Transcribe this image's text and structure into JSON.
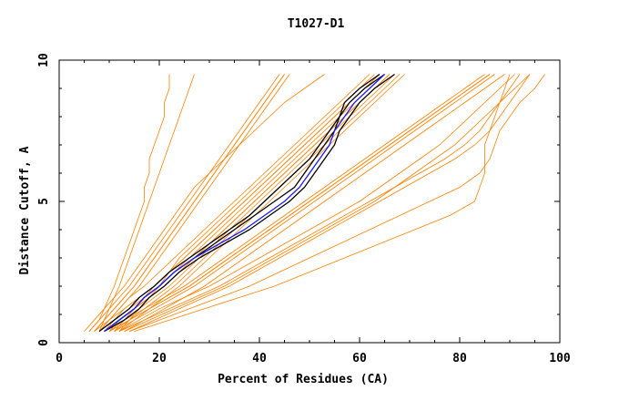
{
  "chart_data": {
    "type": "line",
    "title": "T1027-D1",
    "xlabel": "Percent of Residues (CA)",
    "ylabel": "Distance Cutoff, A",
    "xlim": [
      0,
      100
    ],
    "ylim": [
      0,
      10
    ],
    "x_ticks": [
      0,
      20,
      40,
      60,
      80,
      100
    ],
    "y_ticks": [
      0,
      5,
      10
    ],
    "x_tick_labels": [
      "0",
      "20",
      "40",
      "60",
      "80",
      "100"
    ],
    "y_tick_labels": [
      "0",
      "5",
      "10"
    ],
    "grid": false,
    "legend": "none",
    "colors": {
      "background_models": "#ff8000",
      "highlight_black": "#000000",
      "highlight_blue": "#1a1aff",
      "axis": "#000000",
      "text": "#000000"
    },
    "y_levels": [
      0.4,
      0.8,
      1.2,
      1.6,
      2.0,
      2.5,
      3.0,
      3.5,
      4.0,
      4.5,
      5.0,
      5.5,
      6.0,
      6.5,
      7.0,
      7.5,
      8.0,
      8.5,
      9.0,
      9.5
    ],
    "background_series": [
      {
        "x": [
          6,
          8,
          9,
          10,
          11,
          12,
          13,
          14,
          15,
          16,
          17,
          17,
          18,
          18,
          19,
          20,
          21,
          21,
          22,
          22
        ]
      },
      {
        "x": [
          5,
          7,
          9,
          11,
          13,
          15,
          17,
          19,
          21,
          23,
          25,
          27,
          30,
          33,
          36,
          39,
          42,
          45,
          49,
          53
        ]
      },
      {
        "x": [
          7,
          9,
          11,
          13,
          15,
          17,
          19,
          21,
          23,
          25,
          27,
          29,
          31,
          33,
          35,
          37,
          39,
          41,
          43,
          45
        ]
      },
      {
        "x": [
          8,
          10,
          12,
          14,
          16,
          18,
          20,
          22,
          24,
          26,
          28,
          30,
          32,
          34,
          36,
          38,
          40,
          42,
          44,
          46
        ]
      },
      {
        "x": [
          9,
          12,
          15,
          18,
          21,
          24,
          27,
          30,
          33,
          36,
          39,
          42,
          45,
          48,
          51,
          54,
          57,
          60,
          63,
          66
        ]
      },
      {
        "x": [
          10,
          14,
          18,
          22,
          26,
          30,
          34,
          38,
          42,
          46,
          50,
          54,
          58,
          62,
          66,
          70,
          74,
          78,
          82,
          86
        ]
      },
      {
        "x": [
          11,
          13,
          15,
          17,
          19,
          22,
          25,
          28,
          31,
          34,
          37,
          40,
          43,
          46,
          49,
          52,
          55,
          58,
          61,
          64
        ]
      },
      {
        "x": [
          12,
          14,
          16,
          18,
          20,
          22,
          24,
          27,
          30,
          33,
          36,
          39,
          42,
          45,
          48,
          51,
          54,
          57,
          60,
          63
        ]
      },
      {
        "x": [
          8,
          11,
          14,
          17,
          20,
          23,
          26,
          29,
          32,
          35,
          38,
          41,
          44,
          47,
          50,
          53,
          56,
          59,
          62,
          65
        ]
      },
      {
        "x": [
          9,
          11,
          13,
          16,
          19,
          22,
          25,
          28,
          31,
          34,
          37,
          40,
          43,
          46,
          49,
          52,
          55,
          58,
          61,
          64
        ]
      },
      {
        "x": [
          10,
          13,
          16,
          19,
          22,
          25,
          28,
          31,
          34,
          37,
          40,
          43,
          46,
          49,
          52,
          55,
          58,
          61,
          64,
          67
        ]
      },
      {
        "x": [
          11,
          15,
          19,
          23,
          27,
          31,
          35,
          39,
          43,
          47,
          51,
          55,
          59,
          63,
          67,
          71,
          75,
          79,
          83,
          87
        ]
      },
      {
        "x": [
          12,
          16,
          20,
          25,
          30,
          35,
          40,
          45,
          50,
          55,
          60,
          64,
          68,
          72,
          76,
          79,
          82,
          85,
          88,
          91
        ]
      },
      {
        "x": [
          13,
          18,
          23,
          28,
          33,
          38,
          43,
          48,
          53,
          58,
          63,
          67,
          71,
          75,
          79,
          82,
          85,
          88,
          91,
          94
        ]
      },
      {
        "x": [
          14,
          20,
          26,
          32,
          38,
          44,
          50,
          56,
          62,
          68,
          74,
          80,
          84,
          86,
          87,
          88,
          90,
          92,
          95,
          97
        ]
      },
      {
        "x": [
          15,
          22,
          29,
          36,
          43,
          50,
          57,
          64,
          71,
          78,
          83,
          84,
          85,
          85,
          85,
          86,
          87,
          88,
          89,
          90
        ]
      },
      {
        "x": [
          10,
          12,
          15,
          18,
          21,
          24,
          27,
          30,
          33,
          36,
          39,
          42,
          45,
          48,
          51,
          54,
          57,
          60,
          63,
          66
        ]
      },
      {
        "x": [
          9,
          12,
          15,
          18,
          21,
          24,
          27,
          30,
          33,
          36,
          39,
          42,
          45,
          48,
          51,
          54,
          57,
          60,
          63,
          66
        ]
      },
      {
        "x": [
          7,
          10,
          13,
          16,
          19,
          22,
          25,
          28,
          31,
          34,
          37,
          40,
          43,
          46,
          49,
          52,
          55,
          58,
          61,
          64
        ]
      },
      {
        "x": [
          6,
          8,
          10,
          12,
          14,
          16,
          18,
          20,
          22,
          24,
          26,
          28,
          30,
          32,
          34,
          36,
          38,
          40,
          42,
          44
        ]
      },
      {
        "x": [
          8,
          10,
          12,
          14,
          17,
          20,
          23,
          26,
          29,
          32,
          35,
          38,
          41,
          44,
          47,
          50,
          53,
          56,
          59,
          62
        ]
      },
      {
        "x": [
          12,
          15,
          18,
          21,
          24,
          27,
          30,
          33,
          36,
          39,
          42,
          45,
          48,
          51,
          54,
          57,
          60,
          63,
          66,
          69
        ]
      },
      {
        "x": [
          13,
          17,
          21,
          25,
          29,
          33,
          37,
          41,
          45,
          49,
          53,
          57,
          61,
          65,
          69,
          73,
          77,
          81,
          85,
          89
        ]
      },
      {
        "x": [
          11,
          14,
          17,
          20,
          23,
          26,
          29,
          32,
          35,
          38,
          41,
          44,
          47,
          50,
          53,
          56,
          59,
          62,
          65,
          68
        ]
      },
      {
        "x": [
          9,
          13,
          17,
          21,
          25,
          29,
          33,
          37,
          41,
          45,
          49,
          53,
          57,
          61,
          65,
          69,
          73,
          77,
          81,
          85
        ]
      },
      {
        "x": [
          10,
          14,
          18,
          22,
          26,
          30,
          34,
          38,
          42,
          46,
          50,
          54,
          58,
          62,
          66,
          70,
          74,
          78,
          82,
          86
        ]
      },
      {
        "x": [
          7,
          9,
          11,
          13,
          15,
          17,
          19,
          21,
          23,
          25,
          27,
          29,
          31,
          33,
          35,
          37,
          39,
          41,
          43,
          45
        ]
      },
      {
        "x": [
          8,
          9,
          10,
          11,
          12,
          13,
          14,
          15,
          16,
          17,
          18,
          19,
          20,
          21,
          22,
          23,
          24,
          25,
          26,
          27
        ]
      },
      {
        "x": [
          14,
          19,
          24,
          29,
          34,
          39,
          44,
          49,
          54,
          59,
          64,
          69,
          74,
          79,
          83,
          86,
          88,
          90,
          92,
          94
        ]
      },
      {
        "x": [
          12,
          17,
          22,
          27,
          32,
          37,
          42,
          47,
          52,
          57,
          62,
          67,
          72,
          77,
          81,
          84,
          86,
          88,
          90,
          92
        ]
      }
    ],
    "highlight_series": [
      {
        "color": "black",
        "x": [
          9,
          12,
          15,
          17,
          20,
          23,
          27,
          31,
          35,
          39,
          43,
          47,
          49,
          51,
          53,
          55,
          56,
          57,
          60,
          64
        ]
      },
      {
        "color": "black",
        "x": [
          8,
          11,
          14,
          16,
          19,
          22,
          26,
          30,
          34,
          38,
          41,
          44,
          47,
          50,
          52,
          54,
          56,
          58,
          61,
          65
        ]
      },
      {
        "color": "black",
        "x": [
          9,
          13,
          16,
          18,
          21,
          24,
          28,
          33,
          38,
          42,
          46,
          49,
          51,
          53,
          55,
          56,
          58,
          60,
          63,
          67
        ]
      },
      {
        "color": "blue",
        "x": [
          9,
          12,
          15,
          17,
          20,
          23,
          27,
          32,
          37,
          41,
          45,
          48,
          50,
          52,
          54,
          55,
          57,
          59,
          62,
          65
        ]
      }
    ]
  }
}
